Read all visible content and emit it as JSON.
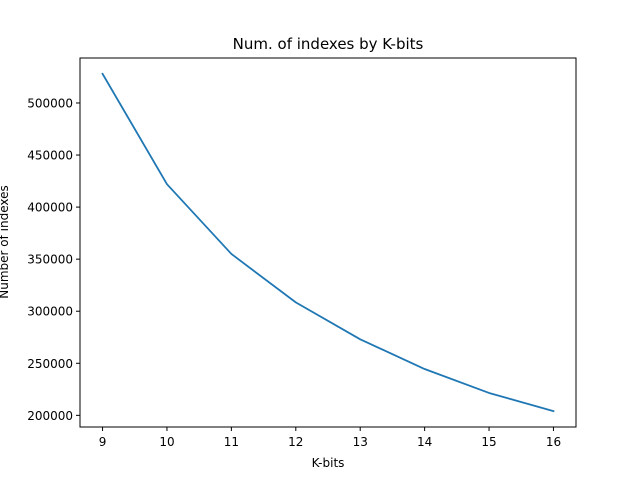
{
  "chart_data": {
    "type": "line",
    "title": "Num. of indexes by K-bits",
    "xlabel": "K-bits",
    "ylabel": "Number of indexes",
    "x": [
      9,
      10,
      11,
      12,
      13,
      14,
      15,
      16
    ],
    "series": [
      {
        "values": [
          528000,
          422000,
          355000,
          308500,
          273000,
          244500,
          221500,
          204000
        ],
        "color": "#1f77b4"
      }
    ],
    "xlim": [
      8.65,
      16.35
    ],
    "ylim": [
      188800,
      543200
    ],
    "xticks": [
      9,
      10,
      11,
      12,
      13,
      14,
      15,
      16
    ],
    "yticks": [
      200000,
      250000,
      300000,
      350000,
      400000,
      450000,
      500000
    ],
    "grid": false,
    "legend": "none"
  }
}
